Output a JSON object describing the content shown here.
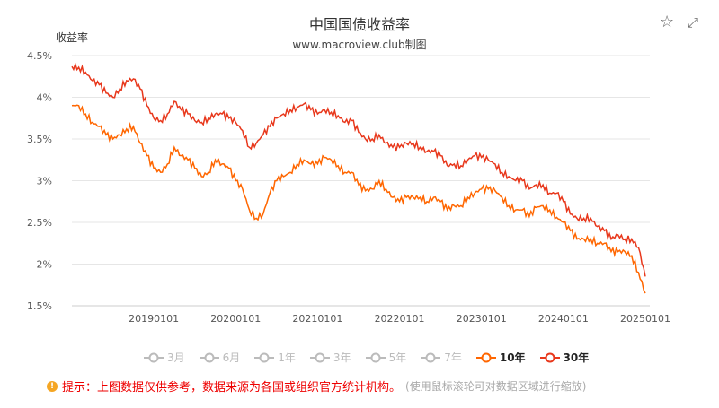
{
  "title": "中国国债收益率",
  "subtitle": "www.macroview.club制图",
  "icons": {
    "star": "star-icon",
    "expand": "expand-icon"
  },
  "legend": [
    {
      "label": "3月",
      "active": false,
      "color": "#bbbbbb"
    },
    {
      "label": "6月",
      "active": false,
      "color": "#bbbbbb"
    },
    {
      "label": "1年",
      "active": false,
      "color": "#bbbbbb"
    },
    {
      "label": "3年",
      "active": false,
      "color": "#bbbbbb"
    },
    {
      "label": "5年",
      "active": false,
      "color": "#bbbbbb"
    },
    {
      "label": "7年",
      "active": false,
      "color": "#bbbbbb"
    },
    {
      "label": "10年",
      "active": true,
      "color": "#ff6600"
    },
    {
      "label": "30年",
      "active": true,
      "color": "#e8381c"
    }
  ],
  "note": {
    "prefix": "提示：",
    "text": "上图数据仅供参考，数据来源为各国或组织官方统计机构。",
    "hint": "(使用鼠标滚轮可对数据区域进行缩放)"
  },
  "chart_data": {
    "type": "line",
    "title": "中国国债收益率",
    "ylabel": "收益率",
    "ylim": [
      1.5,
      4.5
    ],
    "yticks": [
      "1.5%",
      "2%",
      "2.5%",
      "3%",
      "3.5%",
      "4%",
      "4.5%"
    ],
    "xticks": [
      "20190101",
      "20200101",
      "20210101",
      "20220101",
      "20230101",
      "20240101",
      "20250101"
    ],
    "x_start": "2018-01",
    "x_end": "2025-01",
    "x_step": "monthly",
    "series": [
      {
        "name": "10年",
        "color": "#ff6600",
        "values": [
          3.9,
          3.9,
          3.8,
          3.7,
          3.65,
          3.55,
          3.5,
          3.55,
          3.62,
          3.65,
          3.45,
          3.3,
          3.15,
          3.1,
          3.2,
          3.4,
          3.3,
          3.25,
          3.15,
          3.05,
          3.1,
          3.25,
          3.2,
          3.15,
          3.0,
          2.9,
          2.65,
          2.55,
          2.6,
          2.85,
          3.0,
          3.05,
          3.1,
          3.2,
          3.25,
          3.2,
          3.2,
          3.28,
          3.25,
          3.18,
          3.1,
          3.1,
          2.95,
          2.88,
          2.9,
          3.0,
          2.9,
          2.8,
          2.75,
          2.8,
          2.8,
          2.8,
          2.75,
          2.8,
          2.75,
          2.65,
          2.7,
          2.7,
          2.8,
          2.85,
          2.9,
          2.9,
          2.88,
          2.8,
          2.7,
          2.65,
          2.65,
          2.57,
          2.68,
          2.7,
          2.65,
          2.56,
          2.5,
          2.4,
          2.3,
          2.3,
          2.3,
          2.25,
          2.25,
          2.15,
          2.15,
          2.15,
          2.1,
          1.9,
          1.65
        ]
      },
      {
        "name": "30年",
        "color": "#e8381c",
        "values": [
          4.37,
          4.36,
          4.3,
          4.2,
          4.15,
          4.05,
          4.0,
          4.1,
          4.2,
          4.22,
          4.1,
          3.9,
          3.75,
          3.72,
          3.8,
          3.95,
          3.85,
          3.8,
          3.72,
          3.7,
          3.75,
          3.8,
          3.8,
          3.75,
          3.7,
          3.6,
          3.4,
          3.45,
          3.55,
          3.65,
          3.75,
          3.8,
          3.85,
          3.88,
          3.92,
          3.85,
          3.8,
          3.85,
          3.82,
          3.78,
          3.7,
          3.72,
          3.58,
          3.5,
          3.5,
          3.55,
          3.45,
          3.4,
          3.4,
          3.45,
          3.45,
          3.4,
          3.35,
          3.35,
          3.3,
          3.18,
          3.2,
          3.18,
          3.25,
          3.3,
          3.28,
          3.25,
          3.2,
          3.1,
          3.05,
          3.0,
          3.0,
          2.9,
          2.95,
          2.95,
          2.85,
          2.85,
          2.75,
          2.6,
          2.55,
          2.55,
          2.55,
          2.45,
          2.4,
          2.3,
          2.35,
          2.3,
          2.3,
          2.2,
          1.85
        ]
      }
    ]
  }
}
